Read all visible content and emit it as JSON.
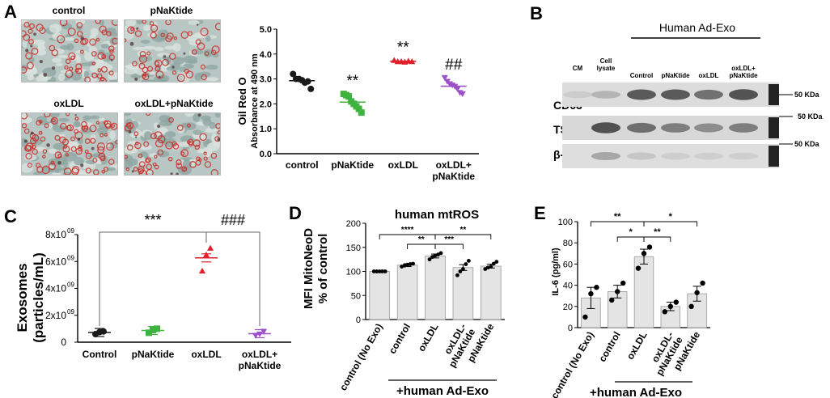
{
  "figure": {
    "panels": {
      "A": {
        "label": "A",
        "image_titles": [
          "control",
          "pNaKtide",
          "oxLDL",
          "oxLDL+pNaKtide"
        ]
      },
      "B": {
        "label": "B",
        "header": "Human Ad-Exo",
        "lanes": [
          "CM",
          "Cell lysate",
          "Control",
          "pNaKtide",
          "oxLDL",
          "oxLDL+ pNaKtide"
        ],
        "rows": [
          "CD63",
          "TSG101",
          "β-Actin"
        ],
        "size_marker": "50 KDa"
      },
      "C": {
        "label": "C"
      },
      "D": {
        "label": "D",
        "group_label": "+human Ad-Exo"
      },
      "E": {
        "label": "E",
        "group_label": "+human Ad-Exo"
      }
    }
  },
  "chart_data": [
    {
      "panel": "A",
      "type": "scatter",
      "title": "",
      "ylabel": "Oil Red O Absorbance at 490 nm",
      "ylabel_lines": [
        "Oil Red O",
        "Absorbance at 490 nm"
      ],
      "ylim": [
        0,
        5
      ],
      "yticks": [
        "0.0",
        "1.0",
        "2.0",
        "3.0",
        "4.0",
        "5.0"
      ],
      "categories": [
        "control",
        "pNaKtide",
        "oxLDL",
        "oxLDL+ pNaKtide"
      ],
      "category_lines": [
        [
          "control"
        ],
        [
          "pNaKtide"
        ],
        [
          "oxLDL"
        ],
        [
          "oxLDL+",
          "pNaKtide"
        ]
      ],
      "colors": [
        "#1a1a1a",
        "#3fb23f",
        "#e0202a",
        "#9b4fc8"
      ],
      "markers": [
        "circle",
        "square",
        "triangle",
        "triangle-down"
      ],
      "points": [
        [
          3.2,
          3.0,
          3.0,
          2.95,
          2.85,
          2.9,
          2.6
        ],
        [
          2.4,
          2.35,
          2.3,
          2.1,
          2.0,
          1.9,
          1.8,
          1.65
        ],
        [
          3.75,
          3.7,
          3.7,
          3.68,
          3.72,
          3.7
        ],
        [
          3.05,
          2.9,
          2.8,
          2.75,
          2.7,
          2.6,
          2.45,
          2.4
        ]
      ],
      "means": [
        2.93,
        2.07,
        3.71,
        2.71
      ],
      "annotations": [
        "",
        "**",
        "**",
        "##"
      ],
      "grid": false
    },
    {
      "panel": "C",
      "type": "scatter",
      "title": "",
      "ylabel": "Exosomes (particles/mL)",
      "ylabel_lines": [
        "Exosomes",
        "(particles/mL)"
      ],
      "ylim": [
        0,
        8000000000.0
      ],
      "ytick_values": [
        0,
        2000000000.0,
        4000000000.0,
        6000000000.0,
        8000000000.0
      ],
      "ytick_labels": [
        {
          "base": "0",
          "sup": ""
        },
        {
          "base": "2x10",
          "sup": "09"
        },
        {
          "base": "4x10",
          "sup": "09"
        },
        {
          "base": "6x10",
          "sup": "09"
        },
        {
          "base": "8x10",
          "sup": "09"
        }
      ],
      "categories": [
        "Control",
        "pNaKtide",
        "oxLDL",
        "oxLDL+ pNaKtide"
      ],
      "category_lines": [
        [
          "Control"
        ],
        [
          "pNaKtide"
        ],
        [
          "oxLDL"
        ],
        [
          "oxLDL+",
          "pNaKtide"
        ]
      ],
      "colors": [
        "#1a1a1a",
        "#3fb23f",
        "#e0202a",
        "#9b4fc8"
      ],
      "markers": [
        "circle",
        "square",
        "triangle",
        "triangle-down"
      ],
      "points": [
        [
          600000000.0,
          750000000.0,
          800000000.0
        ],
        [
          700000000.0,
          900000000.0,
          1000000000.0
        ],
        [
          5300000000.0,
          6500000000.0,
          7000000000.0
        ],
        [
          500000000.0,
          600000000.0,
          800000000.0
        ]
      ],
      "means": [
        720000000.0,
        870000000.0,
        6270000000.0,
        630000000.0
      ],
      "brackets": [
        {
          "from": 0,
          "to": 2,
          "label": "***"
        },
        {
          "from": 2,
          "to": 3,
          "label": "###"
        }
      ],
      "grid": false
    },
    {
      "panel": "D",
      "type": "bar",
      "title": "human mtROS",
      "ylabel": "MFI MitoNeoD % of control",
      "ylabel_lines": [
        "MFI MitoNeoD",
        "% of control"
      ],
      "ylim": [
        0,
        200
      ],
      "yticks": [
        0,
        50,
        100,
        150,
        200
      ],
      "categories": [
        "control (No Exo)",
        "control",
        "oxLDL",
        "oxLDL- pNaKtide",
        "pNaKtide"
      ],
      "category_lines": [
        [
          "control (No Exo)"
        ],
        [
          "control"
        ],
        [
          "oxLDL"
        ],
        [
          "oxLDL-",
          "pNaKtide"
        ],
        [
          "pNaKtide"
        ]
      ],
      "values": [
        100,
        113,
        132,
        108,
        111
      ],
      "errors": [
        0,
        3,
        4,
        6,
        4
      ],
      "points": [
        [
          100,
          100,
          100,
          100,
          100
        ],
        [
          110,
          112,
          114,
          115,
          116
        ],
        [
          125,
          130,
          133,
          135,
          138
        ],
        [
          92,
          100,
          105,
          115,
          122
        ],
        [
          105,
          108,
          110,
          116,
          120
        ]
      ],
      "brackets": [
        {
          "from": 0,
          "to": 2,
          "label": "****"
        },
        {
          "from": 1,
          "to": 2,
          "label": "**"
        },
        {
          "from": 2,
          "to": 3,
          "label": "***"
        },
        {
          "from": 2,
          "to": 4,
          "label": "**"
        }
      ],
      "grid": false
    },
    {
      "panel": "E",
      "type": "bar",
      "title": "",
      "ylabel": "IL-6 (pg/ml)",
      "ylim": [
        0,
        100
      ],
      "yticks": [
        0,
        20,
        40,
        60,
        80,
        100
      ],
      "categories": [
        "control (No Exo)",
        "control",
        "oxLDL",
        "oxLDL- pNaKtide",
        "pNaKtide"
      ],
      "category_lines": [
        [
          "control (No Exo)"
        ],
        [
          "control"
        ],
        [
          "oxLDL"
        ],
        [
          "oxLDL-",
          "pNaKtide"
        ],
        [
          "pNaKtide"
        ]
      ],
      "values": [
        28,
        34,
        67,
        20,
        32
      ],
      "errors": [
        10,
        6,
        7,
        4,
        7
      ],
      "points": [
        [
          10,
          32,
          38
        ],
        [
          26,
          34,
          42
        ],
        [
          56,
          70,
          76
        ],
        [
          15,
          20,
          24
        ],
        [
          20,
          33,
          42
        ]
      ],
      "brackets": [
        {
          "from": 0,
          "to": 2,
          "label": "**"
        },
        {
          "from": 1,
          "to": 2,
          "label": "*"
        },
        {
          "from": 2,
          "to": 3,
          "label": "**"
        },
        {
          "from": 2,
          "to": 4,
          "label": "*"
        }
      ],
      "grid": false
    }
  ]
}
